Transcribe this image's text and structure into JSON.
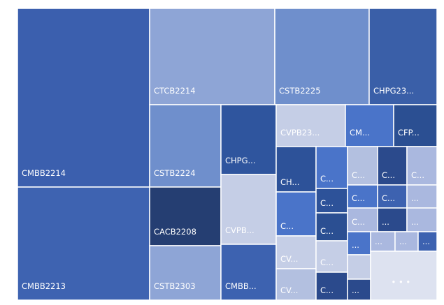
{
  "tiles": [
    "CMBB2214",
    "CMBB2213",
    "CTCB2214",
    "CSTB2225",
    "CHPG23...",
    "CSTB2224",
    "CACB2208",
    "CSTB2303",
    "CHPG...",
    "CVPB...",
    "CMBB...",
    "CVPB23...",
    "CM...",
    "CFP...",
    "CH...",
    "C...",
    "C...",
    "C...",
    "C...",
    "C...",
    "CV...",
    "CV...",
    "C...",
    "C...",
    "C...",
    "C...",
    "C...",
    "C...",
    "...",
    "C...",
    "...",
    "...",
    "...",
    "...",
    "...",
    "...",
    "...",
    "• • •"
  ]
}
